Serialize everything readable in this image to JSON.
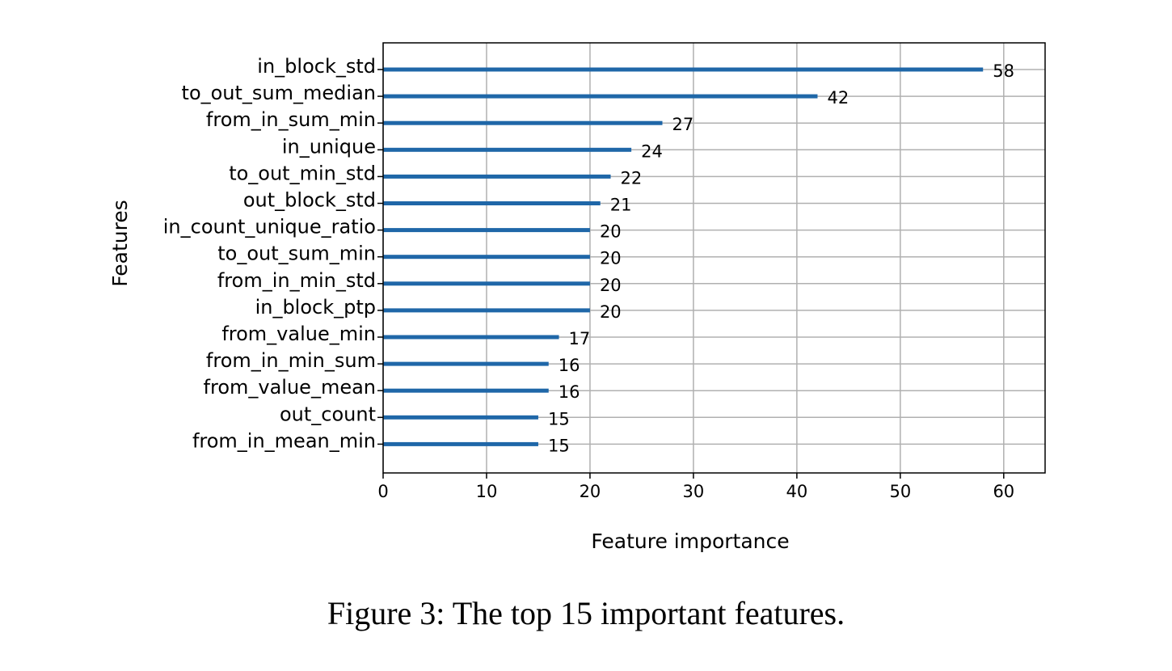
{
  "caption": "Figure 3: The top 15 important features.",
  "chart_data": {
    "type": "bar",
    "orientation": "horizontal",
    "title": "",
    "xlabel": "Feature importance",
    "ylabel": "Features",
    "xlim": [
      0,
      64
    ],
    "xticks": [
      0,
      10,
      20,
      30,
      40,
      50,
      60
    ],
    "grid": true,
    "bar_color": "#1f67a8",
    "categories": [
      "in_block_std",
      "to_out_sum_median",
      "from_in_sum_min",
      "in_unique",
      "to_out_min_std",
      "out_block_std",
      "in_count_unique_ratio",
      "to_out_sum_min",
      "from_in_min_std",
      "in_block_ptp",
      "from_value_min",
      "from_in_min_sum",
      "from_value_mean",
      "out_count",
      "from_in_mean_min"
    ],
    "values": [
      58,
      42,
      27,
      24,
      22,
      21,
      20,
      20,
      20,
      20,
      17,
      16,
      16,
      15,
      15
    ]
  }
}
